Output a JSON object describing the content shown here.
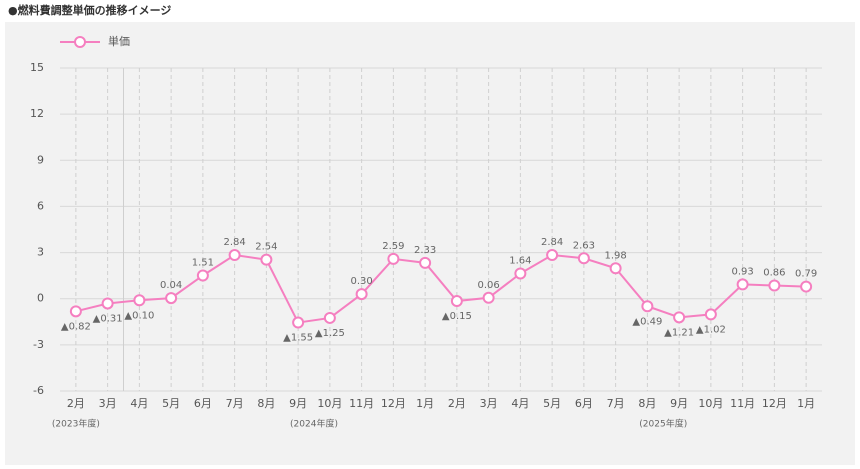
{
  "chart_data": {
    "type": "line",
    "title": "●燃料費調整単価の推移イメージ",
    "categories": [
      "2月",
      "3月",
      "4月",
      "5月",
      "6月",
      "7月",
      "8月",
      "9月",
      "10月",
      "11月",
      "12月",
      "1月",
      "2月",
      "3月",
      "4月",
      "5月",
      "6月",
      "7月",
      "8月",
      "9月",
      "10月",
      "11月",
      "12月",
      "1月"
    ],
    "series": [
      {
        "name": "単価",
        "color": "#f57fc0",
        "values": [
          -0.82,
          -0.31,
          -0.1,
          0.04,
          1.51,
          2.84,
          2.54,
          -1.55,
          -1.25,
          0.3,
          2.59,
          2.33,
          -0.15,
          0.06,
          1.64,
          2.84,
          2.63,
          1.98,
          -0.49,
          -1.21,
          -1.02,
          0.93,
          0.86,
          0.79
        ],
        "value_labels": [
          "▲0.82",
          "▲0.31",
          "▲0.10",
          "0.04",
          "1.51",
          "2.84",
          "2.54",
          "▲1.55",
          "▲1.25",
          "0.30",
          "2.59",
          "2.33",
          "▲0.15",
          "0.06",
          "1.64",
          "2.84",
          "2.63",
          "1.98",
          "▲0.49",
          "▲1.21",
          "▲1.02",
          "0.93",
          "0.86",
          "0.79"
        ]
      }
    ],
    "year_labels": [
      "(2023年度)",
      "(2024年度)",
      "(2025年度)"
    ],
    "ylim": [
      -6,
      15
    ],
    "yticks": [
      15,
      12,
      9,
      6,
      3,
      0,
      -3,
      -6
    ],
    "grid": true
  }
}
